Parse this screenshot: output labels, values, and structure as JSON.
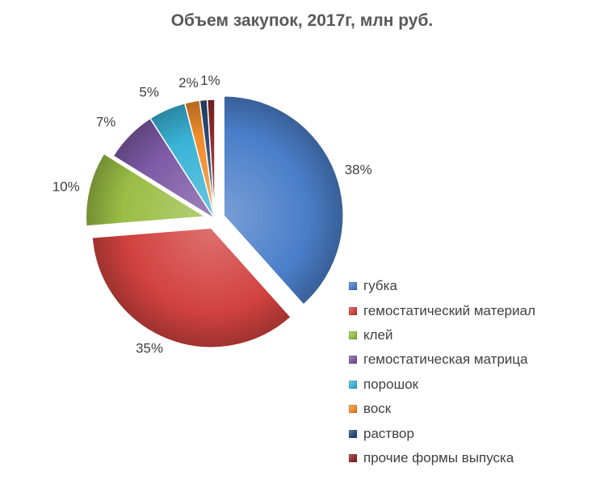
{
  "chart_data": {
    "type": "pie",
    "title": "Объем закупок, 2017г, млн руб.",
    "legend_position": "right-bottom",
    "slices": [
      {
        "name": "губка",
        "value": 38,
        "label": "38%",
        "color": "#4A7EC9",
        "exploded": true
      },
      {
        "name": "гемостатический материал",
        "value": 35,
        "label": "35%",
        "color": "#D2423F",
        "exploded": true
      },
      {
        "name": "клей",
        "value": 10,
        "label": "10%",
        "color": "#9ABD45",
        "exploded": true
      },
      {
        "name": "гемостатическая матрица",
        "value": 7,
        "label": "7%",
        "color": "#7E5AA6",
        "exploded": false
      },
      {
        "name": "порошок",
        "value": 5,
        "label": "5%",
        "color": "#39B3D6",
        "exploded": false
      },
      {
        "name": "воск",
        "value": 2,
        "label": "2%",
        "color": "#F08C2A",
        "exploded": false
      },
      {
        "name": "раствор",
        "value": 1,
        "label": "",
        "color": "#2A4B78",
        "exploded": false
      },
      {
        "name": "прочие формы выпуска",
        "value": 1,
        "label": "1%",
        "color": "#8E2A28",
        "exploded": false
      }
    ]
  }
}
